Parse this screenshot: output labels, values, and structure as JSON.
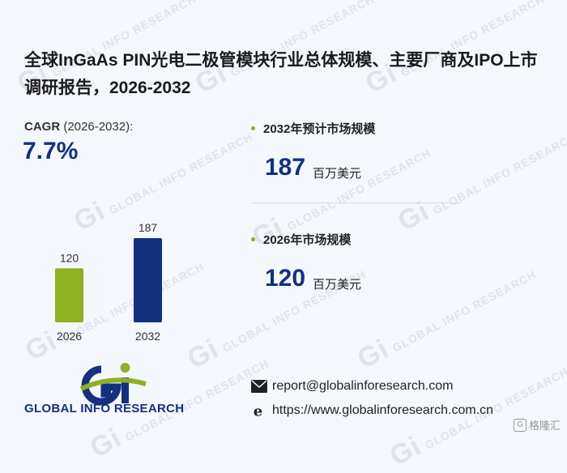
{
  "title": "全球InGaAs PIN光电二极管模块行业总体规模、主要厂商及IPO上市调研报告，2026-2032",
  "cagr": {
    "label": "CAGR",
    "period": " (2026-2032):",
    "value": "7.7%"
  },
  "stats": [
    {
      "label": "2032年预计市场规模",
      "value": "187",
      "unit": "百万美元"
    },
    {
      "label": "2026年市场规模",
      "value": "120",
      "unit": "百万美元"
    }
  ],
  "chart_data": {
    "type": "bar",
    "categories": [
      "2026",
      "2032"
    ],
    "values": [
      120,
      187
    ],
    "unit": "百万美元",
    "colors": [
      "#8fb023",
      "#14307f"
    ]
  },
  "logo": {
    "text": "GLOBAL INFO RESEARCH",
    "icon": "gi-logo-icon"
  },
  "contact": {
    "email": "report@globalinforesearch.com",
    "website": "https://www.globalinforesearch.com.cn"
  },
  "watermark": "GLOBAL INFO RESEARCH",
  "brand": "格隆汇"
}
